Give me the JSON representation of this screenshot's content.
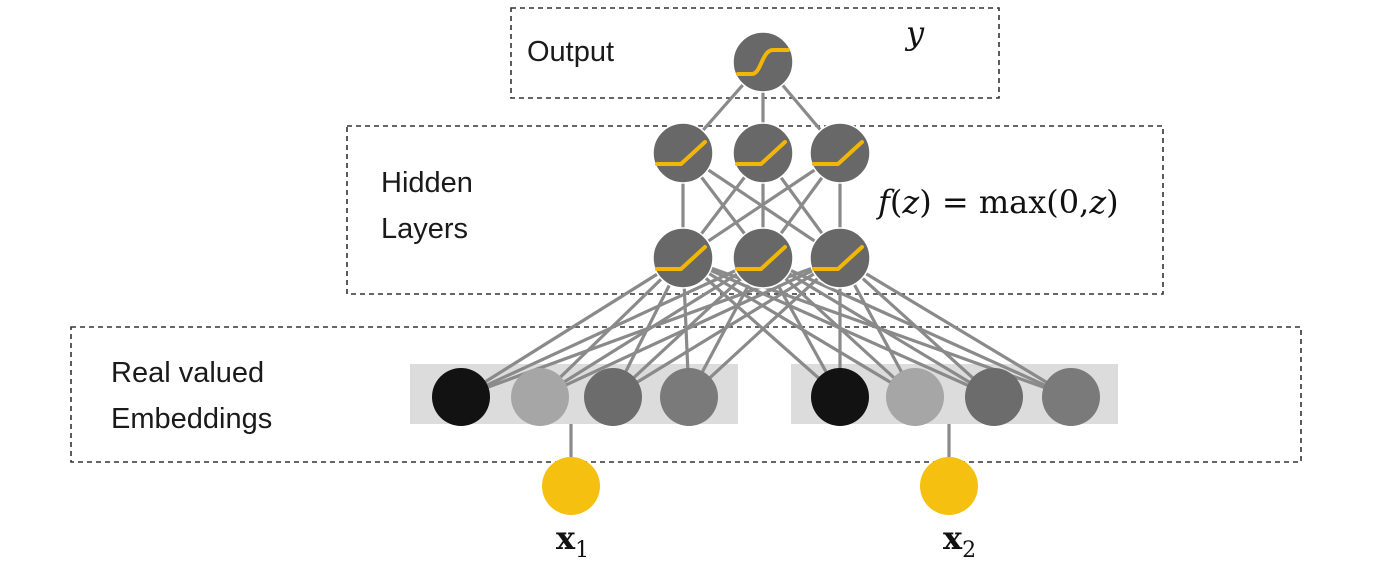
{
  "diagram": {
    "output_label": "Output",
    "output_symbol": "y",
    "hidden_label_line1": "Hidden",
    "hidden_label_line2": "Layers",
    "activation_formula": {
      "f": "f",
      "z": "z",
      "equals": " = ",
      "max": "max",
      "args_open": "(0,",
      "args_close": ")",
      "paren_open": "(",
      "paren_close": ")"
    },
    "embedding_label_line1": "Real valued",
    "embedding_label_line2": "Embeddings",
    "inputs": [
      {
        "symbol": "x",
        "subscript": "1"
      },
      {
        "symbol": "x",
        "subscript": "2"
      }
    ],
    "embedding_shades": [
      "#121212",
      "#a6a6a6",
      "#6c6c6c",
      "#7a7a7a",
      "#121212",
      "#a6a6a6",
      "#6c6c6c",
      "#7a7a7a"
    ],
    "colors": {
      "activation": "#f2b705",
      "input_node": "#f5c010",
      "neuron": "#686868",
      "edge": "#8a8a8a",
      "embedding_bg": "#dcdcdc"
    }
  }
}
